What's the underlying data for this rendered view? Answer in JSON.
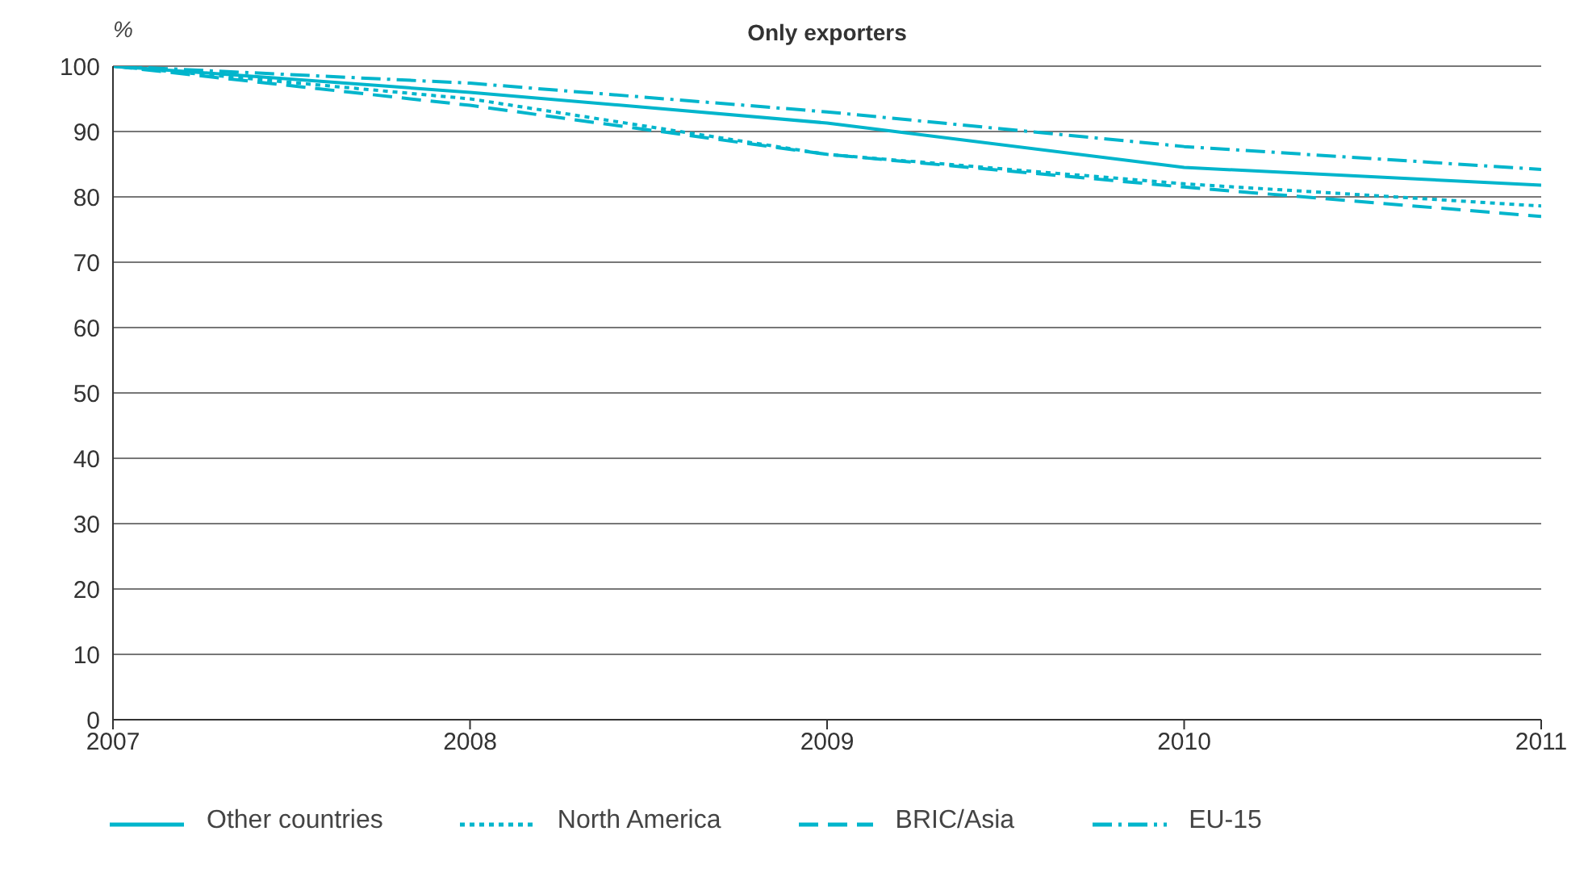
{
  "chart_data": {
    "type": "line",
    "title": "Only exporters",
    "ylabel": "%",
    "x": [
      2007,
      2008,
      2009,
      2010,
      2011
    ],
    "series": [
      {
        "name": "Other countries",
        "color": "#00b5cc",
        "line_style": "solid",
        "values": [
          100,
          96,
          91.3,
          84.5,
          81.8
        ]
      },
      {
        "name": "North America",
        "color": "#00b5cc",
        "line_style": "dotted",
        "values": [
          100,
          95,
          86.5,
          82,
          78.6
        ]
      },
      {
        "name": "BRIC/Asia",
        "color": "#00b5cc",
        "line_style": "dashed",
        "values": [
          100,
          94,
          86.5,
          81.5,
          77
        ]
      },
      {
        "name": "EU-15",
        "color": "#00b5cc",
        "line_style": "dashdot",
        "values": [
          100,
          97.4,
          93,
          87.7,
          84.2
        ]
      }
    ],
    "xlim": [
      2007,
      2011
    ],
    "xticks": [
      2007,
      2008,
      2009,
      2010,
      2011
    ],
    "ylim": [
      0,
      100
    ],
    "yticks": [
      0,
      10,
      20,
      30,
      40,
      50,
      60,
      70,
      80,
      90,
      100
    ],
    "grid": "y",
    "legend": "bottom",
    "marker": "none"
  }
}
